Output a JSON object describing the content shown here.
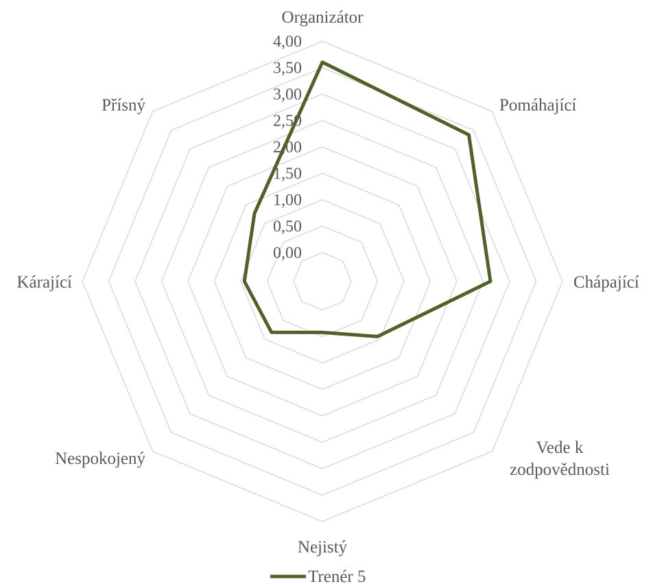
{
  "chart_data": {
    "type": "radar",
    "categories": [
      "Organizátor",
      "Pomáhající",
      "Chápající",
      "Vede k zodpovědnosti",
      "Nejistý",
      "Nespokojený",
      "Kárající",
      "Přísný"
    ],
    "category_lines": [
      [
        "Organizátor"
      ],
      [
        "Pomáhající"
      ],
      [
        "Chápající"
      ],
      [
        "Vede k",
        "zodpovědnosti"
      ],
      [
        "Nejistý"
      ],
      [
        "Nespokojený"
      ],
      [
        "Kárající"
      ],
      [
        "Přísný"
      ]
    ],
    "ticks": [
      "0,00",
      "0,50",
      "1,00",
      "1,50",
      "2,00",
      "2,50",
      "3,00",
      "3,50",
      "4,00"
    ],
    "range": [
      0,
      4
    ],
    "grid": true,
    "legend_position": "bottom",
    "series": [
      {
        "name": "Trenér 5",
        "color": "#4f6228",
        "values": [
          3.65,
          3.45,
          2.8,
          1.3,
          0.85,
          1.2,
          1.3,
          1.6
        ]
      }
    ]
  }
}
